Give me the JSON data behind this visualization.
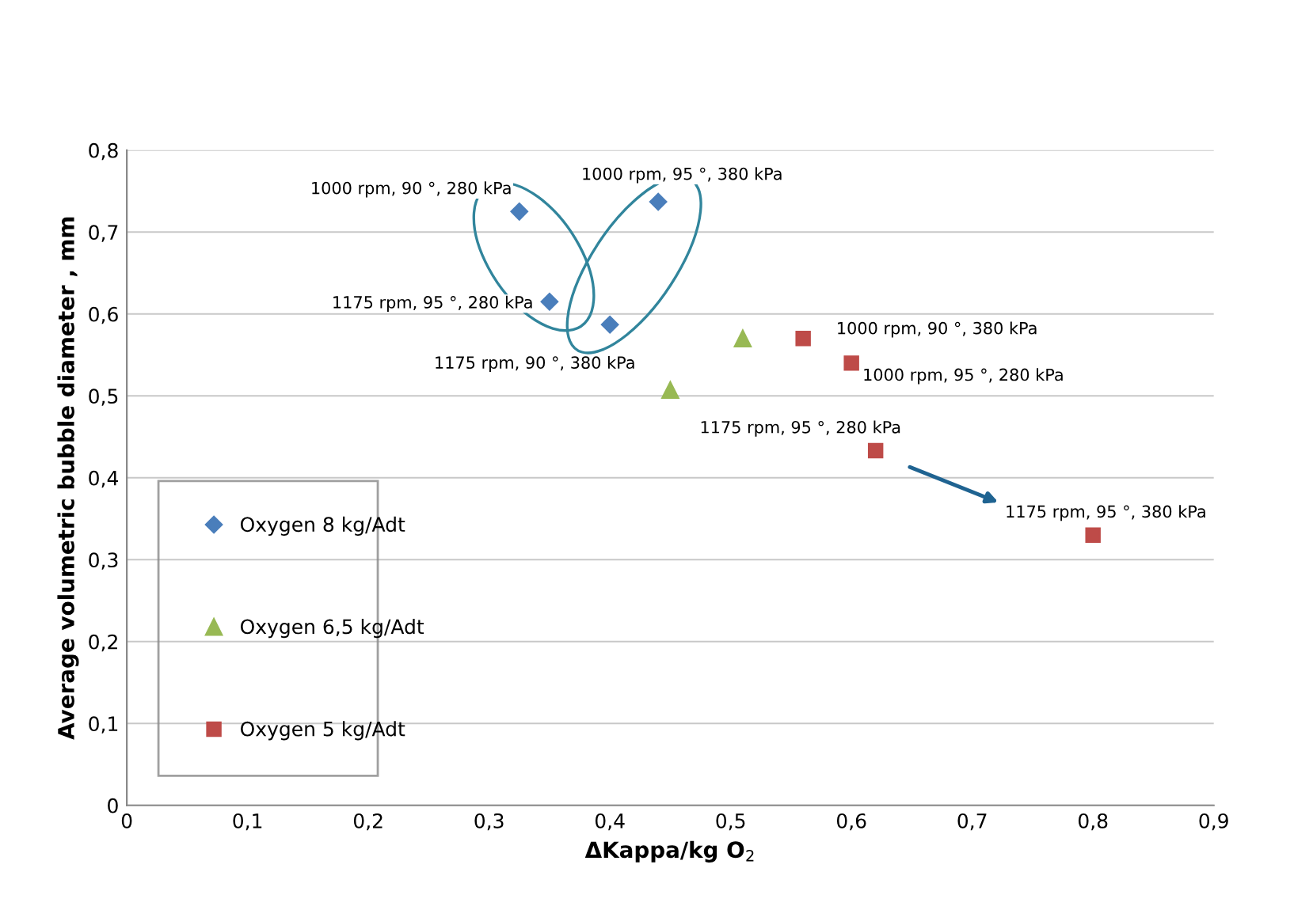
{
  "chart_data": {
    "type": "scatter",
    "xlabel": "ΔKappa/kg O$_{2}$",
    "ylabel": "Average volumetric bubble diameter , mm",
    "xlim": [
      0,
      0.9
    ],
    "xticks": [
      {
        "value": 0,
        "label": "0"
      },
      {
        "value": 0.1,
        "label": "0,1"
      },
      {
        "value": 0.2,
        "label": "0,2"
      },
      {
        "value": 0.3,
        "label": "0,3"
      },
      {
        "value": 0.4,
        "label": "0,4"
      },
      {
        "value": 0.5,
        "label": "0,5"
      },
      {
        "value": 0.6,
        "label": "0,6"
      },
      {
        "value": 0.7,
        "label": "0,7"
      },
      {
        "value": 0.8,
        "label": "0,8"
      },
      {
        "value": 0.9,
        "label": "0,9"
      }
    ],
    "ylim": [
      0,
      0.8
    ],
    "yticks": [
      {
        "value": 0,
        "label": "0"
      },
      {
        "value": 0.1,
        "label": "0,1"
      },
      {
        "value": 0.2,
        "label": "0,2"
      },
      {
        "value": 0.3,
        "label": "0,3"
      },
      {
        "value": 0.4,
        "label": "0,4"
      },
      {
        "value": 0.5,
        "label": "0,5"
      },
      {
        "value": 0.6,
        "label": "0,6"
      },
      {
        "value": 0.7,
        "label": "0,7"
      },
      {
        "value": 0.8,
        "label": "0,8"
      }
    ],
    "grid": "y",
    "legend": "bottom left",
    "series": [
      {
        "name": "Oxygen 8 kg/Adt",
        "color": "#4a7ebb",
        "marker": "diamond",
        "x": [
          0.325,
          0.35,
          0.4,
          0.44
        ],
        "values": [
          0.725,
          0.615,
          0.587,
          0.737
        ]
      },
      {
        "name": "Oxygen 6,5 kg/Adt",
        "color": "#98b954",
        "marker": "triangle",
        "x": [
          0.51,
          0.45
        ],
        "values": [
          0.57,
          0.507
        ]
      },
      {
        "name": "Oxygen 5 kg/Adt",
        "color": "#be4b48",
        "marker": "square",
        "x": [
          0.56,
          0.6,
          0.62,
          0.8
        ],
        "values": [
          0.57,
          0.54,
          0.433,
          0.33
        ]
      }
    ],
    "annotations": [
      {
        "text": "1000 rpm, 90 °, 280 kPa",
        "x": 0.325,
        "y": 0.725
      },
      {
        "text": "1000 rpm, 95 °, 380 kPa",
        "x": 0.44,
        "y": 0.737
      },
      {
        "text": "1175 rpm, 95 °, 280 kPa",
        "x": 0.35,
        "y": 0.615
      },
      {
        "text": "1175 rpm, 90 °, 380 kPa",
        "x": 0.4,
        "y": 0.587
      },
      {
        "text": "1000 rpm, 90 °, 380 kPa",
        "x": 0.56,
        "y": 0.57
      },
      {
        "text": "1000 rpm, 95 °, 280 kPa",
        "x": 0.6,
        "y": 0.54
      },
      {
        "text": "1175 rpm, 95 °, 280 kPa",
        "x": 0.62,
        "y": 0.433
      },
      {
        "text": "1175 rpm, 95 °, 380 kPa",
        "x": 0.8,
        "y": 0.33
      }
    ]
  }
}
